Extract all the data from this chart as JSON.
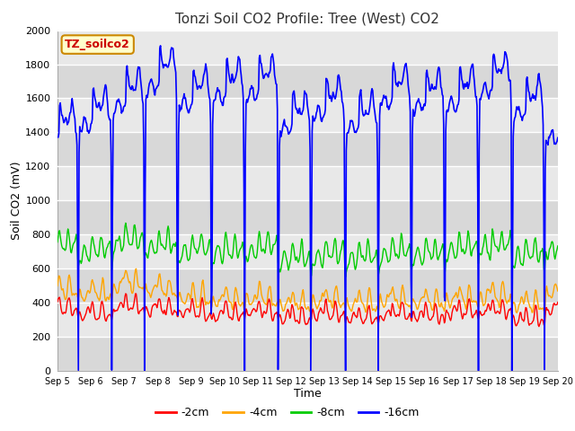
{
  "title": "Tonzi Soil CO2 Profile: Tree (West) CO2",
  "xlabel": "Time",
  "ylabel": "Soil CO2 (mV)",
  "ylim": [
    0,
    2000
  ],
  "yticks": [
    0,
    200,
    400,
    600,
    800,
    1000,
    1200,
    1400,
    1600,
    1800,
    2000
  ],
  "x_tick_labels": [
    "Sep 5",
    "Sep 6",
    "Sep 7",
    "Sep 8",
    "Sep 9",
    "Sep 10",
    "Sep 11",
    "Sep 12",
    "Sep 13",
    "Sep 14",
    "Sep 15",
    "Sep 16",
    "Sep 17",
    "Sep 18",
    "Sep 19",
    "Sep 20"
  ],
  "legend_entries": [
    "-2cm",
    "-4cm",
    "-8cm",
    "-16cm"
  ],
  "legend_colors": [
    "#ff0000",
    "#ffa500",
    "#00cc00",
    "#0000ff"
  ],
  "watermark_text": "TZ_soilco2",
  "watermark_bg": "#ffffcc",
  "watermark_border": "#cc8800",
  "bg_color": "#e0e0e0",
  "line_colors": {
    "cm2": "#ff0000",
    "cm4": "#ffa500",
    "cm8": "#00cc00",
    "cm16": "#0000ff"
  },
  "grid_color": "#ffffff",
  "title_fontsize": 11,
  "axis_label_fontsize": 9,
  "tick_fontsize": 8
}
